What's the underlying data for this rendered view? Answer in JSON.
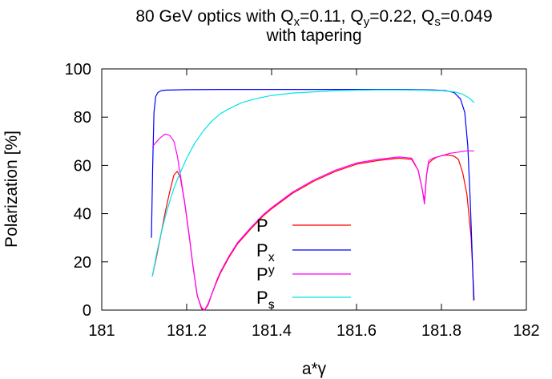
{
  "chart_data": {
    "type": "line",
    "title_line1_prefix": "80 GeV optics with Q",
    "title_parts": [
      {
        "sub": "x",
        "val": "=0.11, Q"
      },
      {
        "sub": "y",
        "val": "=0.22, Q"
      },
      {
        "sub": "s",
        "val": "=0.049"
      }
    ],
    "title_line2": "with tapering",
    "xlabel": "a*γ",
    "ylabel": "Polarization [%]",
    "xlim": [
      181,
      182
    ],
    "ylim": [
      0,
      100
    ],
    "xticks": [
      "181",
      "181.2",
      "181.4",
      "181.6",
      "181.8",
      "182"
    ],
    "yticks": [
      "0",
      "20",
      "40",
      "60",
      "80",
      "100"
    ],
    "grid": false,
    "legend_position": "center-right",
    "series": [
      {
        "name": "P",
        "legend_base": "P",
        "legend_sub": "",
        "color": "#ff0000",
        "x": [
          181.119,
          181.13,
          181.14,
          181.15,
          181.16,
          181.17,
          181.178,
          181.185,
          181.195,
          181.205,
          181.215,
          181.225,
          181.235,
          181.242,
          181.25,
          181.26,
          181.27,
          181.28,
          181.3,
          181.32,
          181.35,
          181.38,
          181.4,
          181.45,
          181.5,
          181.55,
          181.6,
          181.65,
          181.7,
          181.73,
          181.745,
          181.755,
          181.76,
          181.765,
          181.77,
          181.78,
          181.79,
          181.8,
          181.81,
          181.82,
          181.83,
          181.84,
          181.85,
          181.86,
          181.87,
          181.877
        ],
        "y": [
          14,
          23,
          32,
          41,
          49,
          56,
          57.5,
          55,
          45,
          32,
          18,
          6,
          0.5,
          0,
          2,
          7,
          11.5,
          15.5,
          22,
          27.5,
          33.5,
          39,
          42,
          48.5,
          53.5,
          57.5,
          60.5,
          62,
          63,
          62.5,
          58,
          50,
          45,
          56,
          61,
          62.5,
          63.5,
          64,
          64.3,
          64.2,
          63.8,
          62.5,
          57,
          48,
          30,
          4
        ]
      },
      {
        "name": "Px",
        "legend_base": "P",
        "legend_sub": "x",
        "color": "#0000ff",
        "x": [
          181.117,
          181.12,
          181.123,
          181.127,
          181.132,
          181.14,
          181.15,
          181.2,
          181.3,
          181.4,
          181.5,
          181.6,
          181.7,
          181.78,
          181.81,
          181.83,
          181.845,
          181.855,
          181.862,
          181.868,
          181.873,
          181.876
        ],
        "y": [
          30,
          60,
          82,
          88.5,
          90.2,
          91,
          91.2,
          91.4,
          91.5,
          91.5,
          91.5,
          91.5,
          91.5,
          91.3,
          91,
          90.2,
          87.5,
          82,
          68,
          45,
          20,
          4
        ]
      },
      {
        "name": "Py",
        "legend_base": "P",
        "legend_sub": "y",
        "color": "#ff00ff",
        "x": [
          181.119,
          181.125,
          181.135,
          181.145,
          181.15,
          181.16,
          181.17,
          181.178,
          181.185,
          181.195,
          181.205,
          181.215,
          181.225,
          181.235,
          181.242,
          181.25,
          181.26,
          181.27,
          181.28,
          181.3,
          181.32,
          181.35,
          181.38,
          181.4,
          181.45,
          181.5,
          181.55,
          181.6,
          181.65,
          181.7,
          181.73,
          181.745,
          181.755,
          181.76,
          181.765,
          181.77,
          181.78,
          181.8,
          181.82,
          181.84,
          181.86,
          181.877
        ],
        "y": [
          67.5,
          69,
          71,
          72.5,
          73,
          72.5,
          70,
          64,
          56,
          45,
          32,
          18,
          6,
          1,
          0,
          2.5,
          7,
          12,
          16,
          22.5,
          28,
          34,
          39.5,
          42.5,
          49,
          54,
          58,
          61,
          62.5,
          63.5,
          63,
          58,
          50,
          44,
          56,
          62,
          63,
          64,
          65,
          65.5,
          66,
          66
        ]
      },
      {
        "name": "Ps",
        "legend_base": "P",
        "legend_sub": "s",
        "color": "#00e5e5",
        "x": [
          181.119,
          181.13,
          181.14,
          181.15,
          181.16,
          181.17,
          181.18,
          181.2,
          181.22,
          181.24,
          181.26,
          181.28,
          181.3,
          181.33,
          181.36,
          181.4,
          181.45,
          181.5,
          181.55,
          181.6,
          181.65,
          181.7,
          181.75,
          181.8,
          181.83,
          181.85,
          181.865,
          181.877
        ],
        "y": [
          14,
          24,
          32,
          39,
          45,
          50.5,
          55,
          63,
          69.5,
          74.5,
          78.5,
          81.5,
          83.5,
          86,
          87.5,
          89,
          90,
          90.5,
          91,
          91.2,
          91.3,
          91.3,
          91.2,
          91,
          90.5,
          89.5,
          88,
          86
        ]
      }
    ]
  }
}
